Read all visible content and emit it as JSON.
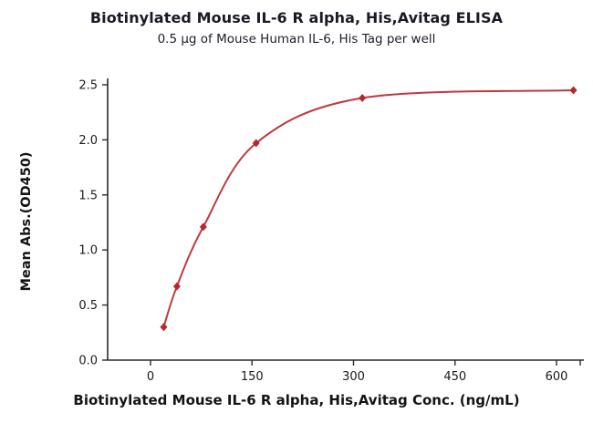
{
  "chart_data": {
    "type": "scatter",
    "title": "Biotinylated Mouse IL-6 R alpha, His,Avitag ELISA",
    "subtitle": "0.5 μg of Mouse Human IL-6, His Tag per well",
    "xlabel": "Biotinylated Mouse IL-6 R alpha, His,Avitag Conc. (ng/mL)",
    "ylabel": "Mean Abs.(OD450)",
    "x": [
      19.5,
      39,
      78,
      156,
      313,
      625
    ],
    "y": [
      0.3,
      0.67,
      1.21,
      1.97,
      2.38,
      2.45
    ],
    "xticks": [
      0,
      150,
      300,
      450,
      600
    ],
    "yticks": [
      0.0,
      0.5,
      1.0,
      1.5,
      2.0,
      2.5
    ],
    "xlim": [
      0,
      640
    ],
    "ylim": [
      0.0,
      2.5
    ],
    "grid": "off",
    "legend": "none",
    "curve_type": "4PL fit",
    "line_color": "#c0393e",
    "marker_color": "#b5282e",
    "axis_color": "#2b2b2b"
  }
}
